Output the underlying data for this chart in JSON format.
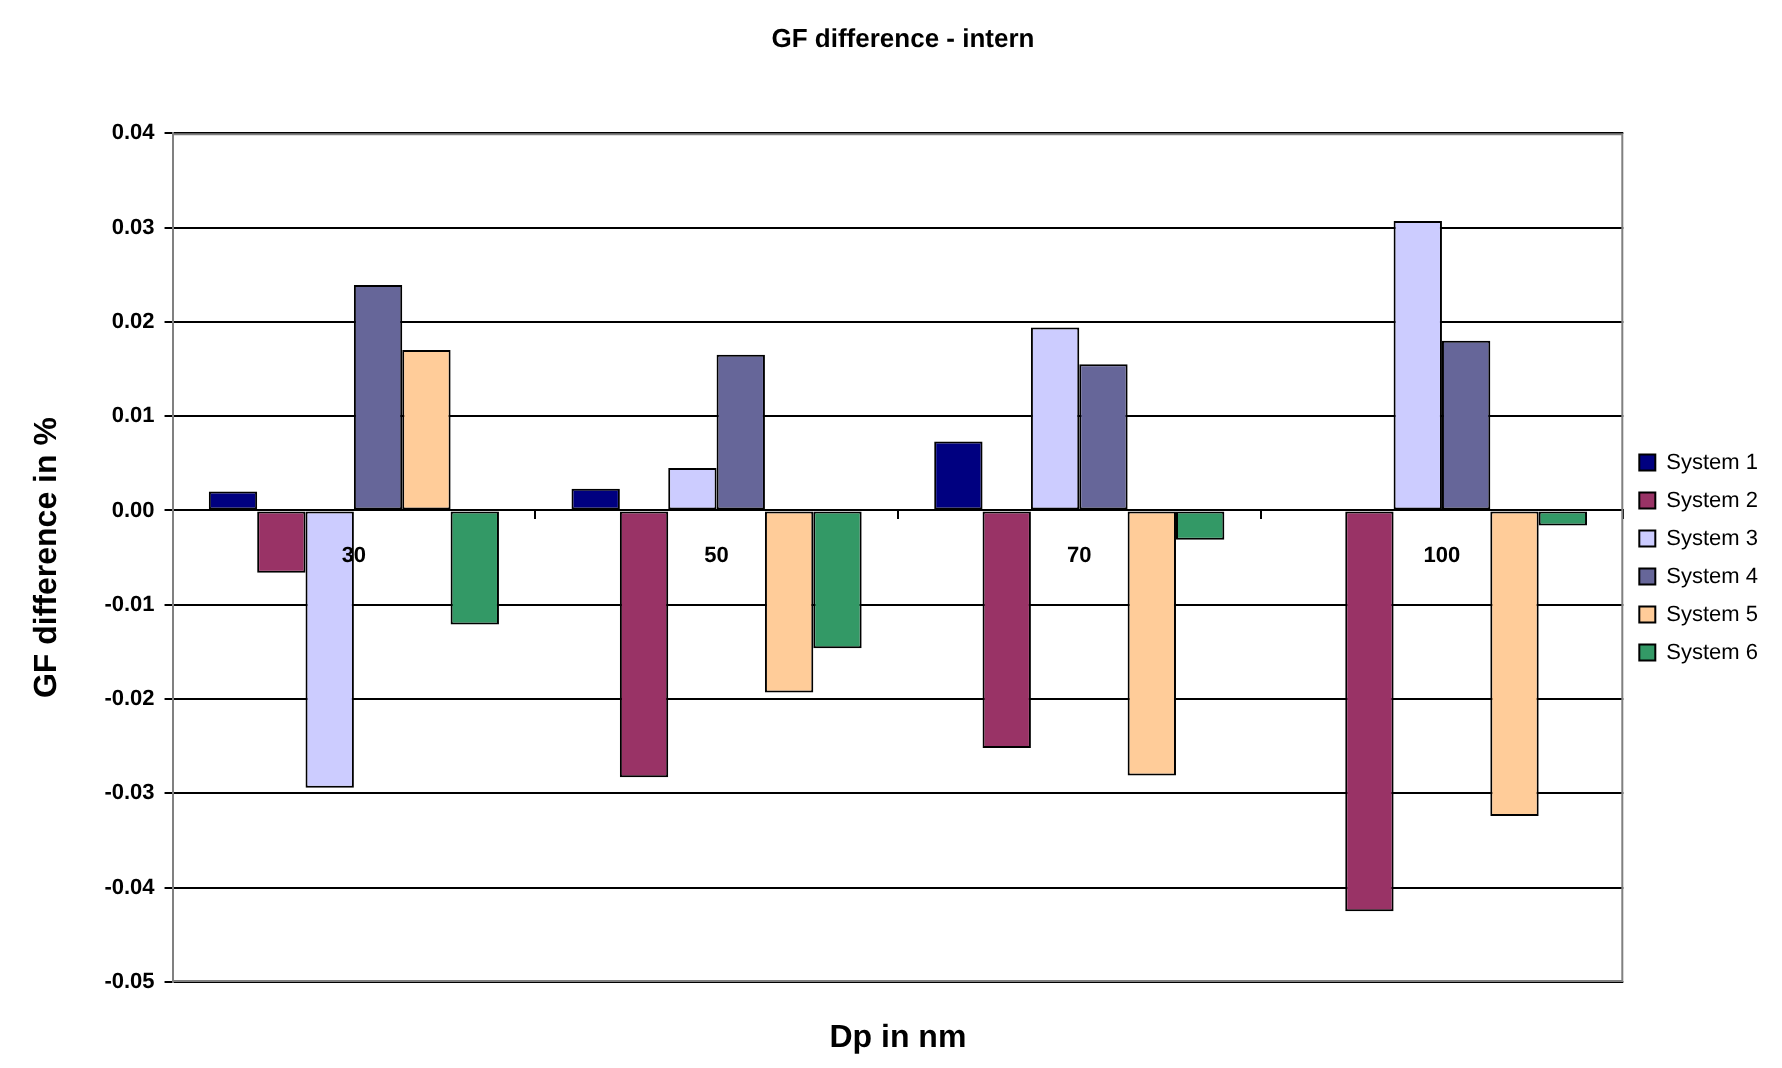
{
  "chart_data": {
    "type": "bar",
    "title": "GF difference - intern",
    "xlabel": "Dp in nm",
    "ylabel": "GF difference in %",
    "categories": [
      "30",
      "50",
      "70",
      "100"
    ],
    "series": [
      {
        "name": "System 1",
        "color": "#000080",
        "values": [
          0.002,
          0.0023,
          0.0073,
          0
        ]
      },
      {
        "name": "System 2",
        "color": "#993366",
        "values": [
          -0.0066,
          -0.0283,
          -0.0252,
          -0.0425
        ]
      },
      {
        "name": "System 3",
        "color": "#ccccff",
        "values": [
          -0.0294,
          0.0045,
          0.0194,
          0.0307
        ]
      },
      {
        "name": "System 4",
        "color": "#666699",
        "values": [
          0.0239,
          0.0165,
          0.0155,
          0.018
        ]
      },
      {
        "name": "System 5",
        "color": "#ffcc99",
        "values": [
          0.017,
          -0.0193,
          -0.0281,
          -0.0324
        ]
      },
      {
        "name": "System 6",
        "color": "#339966",
        "values": [
          -0.0121,
          -0.0146,
          -0.0031,
          -0.0016
        ]
      }
    ],
    "ylim": [
      -0.05,
      0.04
    ],
    "yticks": [
      -0.05,
      -0.04,
      -0.03,
      -0.02,
      -0.01,
      {
        "value": 0,
        "label": "0.00"
      },
      0.01,
      0.02,
      0.03,
      0.04
    ],
    "grid": "y",
    "legend": "right"
  }
}
